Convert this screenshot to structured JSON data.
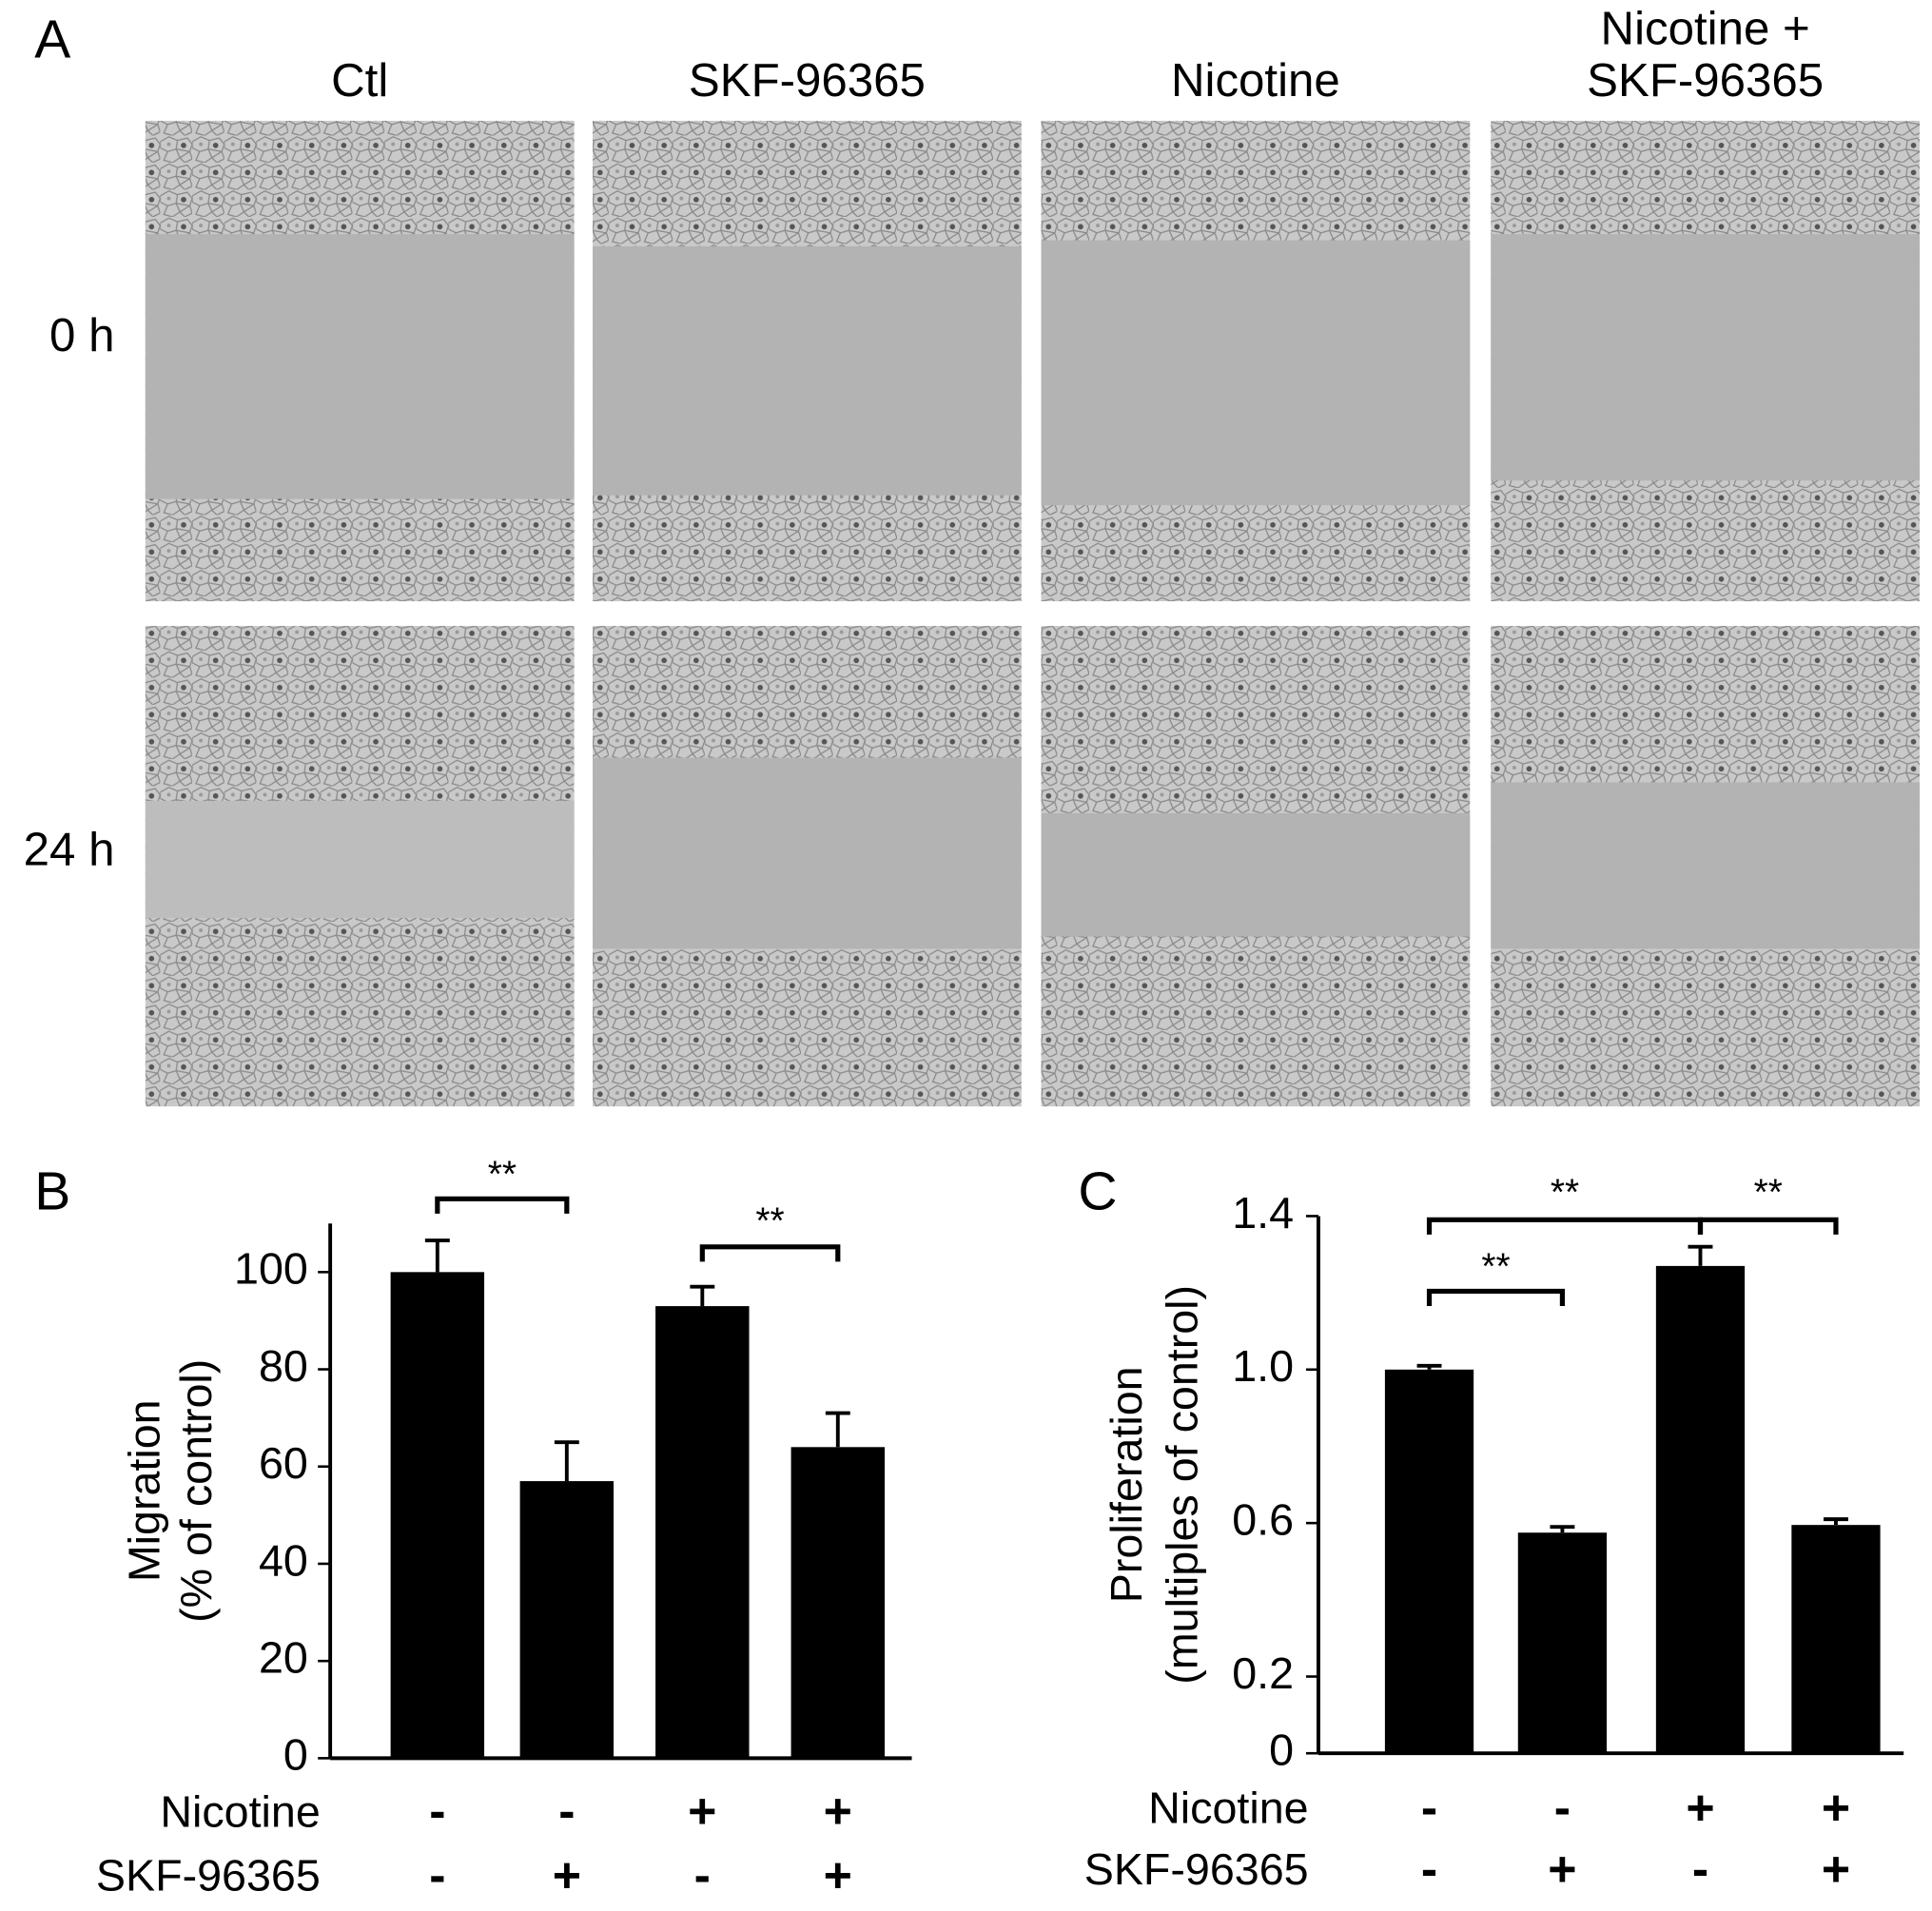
{
  "panel_labels": [
    "A",
    "B",
    "C"
  ],
  "panel_a": {
    "columns": [
      [
        "Ctl"
      ],
      [
        "SKF-96365"
      ],
      [
        "Nicotine"
      ],
      [
        "Nicotine +",
        "SKF-96365"
      ]
    ],
    "rows": [
      "0 h",
      "24 h"
    ]
  },
  "chart_data": [
    {
      "type": "bar",
      "ylabel": [
        "Migration",
        "(% of control)"
      ],
      "factors": [
        {
          "name": "Nicotine",
          "levels": [
            "-",
            "-",
            "+",
            "+"
          ]
        },
        {
          "name": "SKF-96365",
          "levels": [
            "-",
            "+",
            "-",
            "+"
          ]
        }
      ],
      "values": [
        100,
        57,
        93,
        64
      ],
      "errors": [
        6.5,
        8,
        4,
        7
      ],
      "color": "#000000",
      "ylim": [
        0,
        110
      ],
      "yticks": [
        0,
        20,
        40,
        60,
        80,
        100
      ],
      "grid": false,
      "annotations": [
        "**",
        "**"
      ]
    },
    {
      "type": "bar",
      "ylabel": [
        "Proliferation",
        "(multiples of control)"
      ],
      "factors": [
        {
          "name": "Nicotine",
          "levels": [
            "-",
            "-",
            "+",
            "+"
          ]
        },
        {
          "name": "SKF-96365",
          "levels": [
            "-",
            "+",
            "-",
            "+"
          ]
        }
      ],
      "values": [
        1.0,
        0.575,
        1.27,
        0.595
      ],
      "errors": [
        0.01,
        0.015,
        0.05,
        0.015
      ],
      "color": "#000000",
      "ylim": [
        0,
        1.4
      ],
      "yticks": [
        0,
        0.2,
        0.6,
        {
          "value": 1,
          "label": "1.0"
        },
        1.4
      ],
      "grid": false,
      "annotations": [
        "**",
        "**",
        "**"
      ]
    }
  ]
}
